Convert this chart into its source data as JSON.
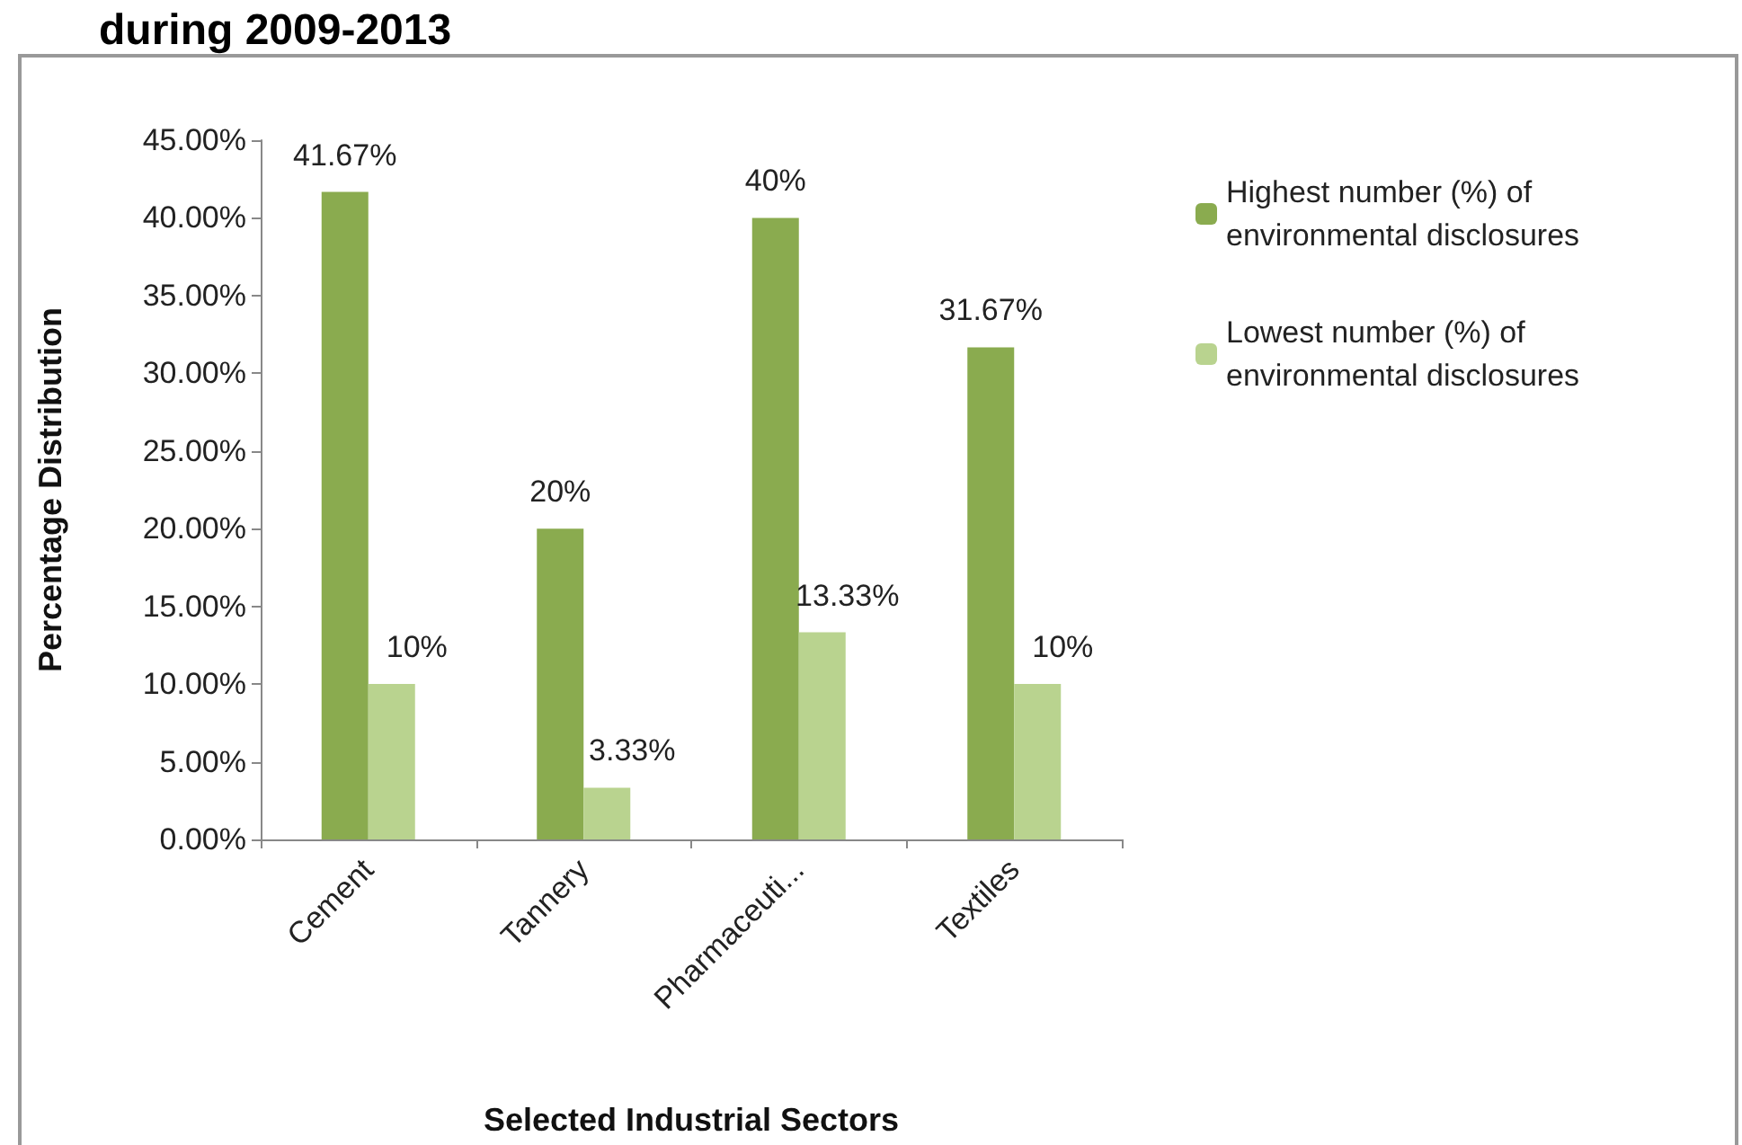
{
  "chart_data": {
    "type": "bar",
    "title": "during 2009-2013",
    "xlabel": "Selected Industrial Sectors",
    "ylabel": "Percentage Distribution",
    "categories": [
      "Cement",
      "Tannery",
      "Pharmaceuti...",
      "Textiles"
    ],
    "series": [
      {
        "name": "Highest number (%) of environmental disclosures",
        "color": "#8aab4f",
        "values": [
          41.67,
          20,
          40,
          31.67
        ],
        "value_labels": [
          "41.67%",
          "20%",
          "40%",
          "31.67%"
        ]
      },
      {
        "name": "Lowest number (%) of environmental disclosures",
        "color": "#b9d38f",
        "values": [
          10,
          3.33,
          13.33,
          10
        ],
        "value_labels": [
          "10%",
          "3.33%",
          "13.33%",
          "10%"
        ]
      }
    ],
    "ylim": [
      0,
      45
    ],
    "yticks": [
      {
        "value": 0,
        "label": "0.00%"
      },
      {
        "value": 5,
        "label": "5.00%"
      },
      {
        "value": 10,
        "label": "10.00%"
      },
      {
        "value": 15,
        "label": "15.00%"
      },
      {
        "value": 20,
        "label": "20.00%"
      },
      {
        "value": 25,
        "label": "25.00%"
      },
      {
        "value": 30,
        "label": "30.00%"
      },
      {
        "value": 35,
        "label": "35.00%"
      },
      {
        "value": 40,
        "label": "40.00%"
      },
      {
        "value": 45,
        "label": "45.00%"
      }
    ],
    "grid": false,
    "legend": "right"
  }
}
